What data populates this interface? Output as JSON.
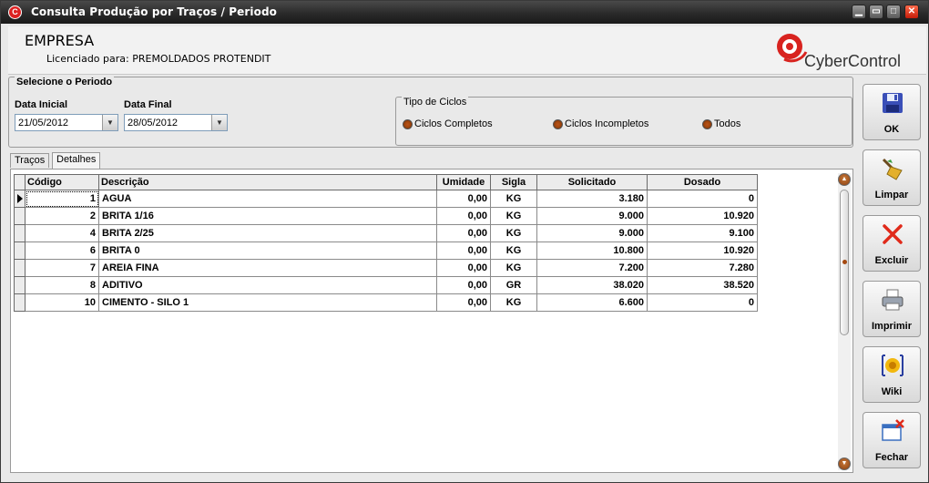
{
  "window": {
    "title": "Consulta Produção por Traços / Periodo",
    "controls": [
      "minimize",
      "restore",
      "maximize",
      "close"
    ]
  },
  "header": {
    "company": "EMPRESA",
    "licensed": "Licenciado para: PREMOLDADOS PROTENDIT",
    "brand": "CyberControl"
  },
  "period": {
    "legend": "Selecione o Periodo",
    "start_label": "Data Inicial",
    "start_value": "21/05/2012",
    "end_label": "Data Final",
    "end_value": "28/05/2012"
  },
  "cycles": {
    "legend": "Tipo de Ciclos",
    "options": [
      "Ciclos Completos",
      "Ciclos Incompletos",
      "Todos"
    ]
  },
  "tabs": [
    "Traços",
    "Detalhes"
  ],
  "active_tab": "Detalhes",
  "table": {
    "columns": [
      "Código",
      "Descrição",
      "Umidade",
      "Sigla",
      "Solicitado",
      "Dosado"
    ],
    "rows": [
      [
        "1",
        "AGUA",
        "0,00",
        "KG",
        "3.180",
        "0"
      ],
      [
        "2",
        "BRITA 1/16",
        "0,00",
        "KG",
        "9.000",
        "10.920"
      ],
      [
        "4",
        "BRITA 2/25",
        "0,00",
        "KG",
        "9.000",
        "9.100"
      ],
      [
        "6",
        "BRITA 0",
        "0,00",
        "KG",
        "10.800",
        "10.920"
      ],
      [
        "7",
        "AREIA FINA",
        "0,00",
        "KG",
        "7.200",
        "7.280"
      ],
      [
        "8",
        "ADITIVO",
        "0,00",
        "GR",
        "38.020",
        "38.520"
      ],
      [
        "10",
        "CIMENTO - SILO 1",
        "0,00",
        "KG",
        "6.600",
        "0"
      ]
    ]
  },
  "actions": {
    "ok": "OK",
    "limpar": "Limpar",
    "excluir": "Excluir",
    "imprimir": "Imprimir",
    "wiki": "Wiki",
    "fechar": "Fechar"
  },
  "colors": {
    "titlebar": "#2a2a2a",
    "radio": "#a4480f",
    "brand_red": "#d8231f"
  }
}
